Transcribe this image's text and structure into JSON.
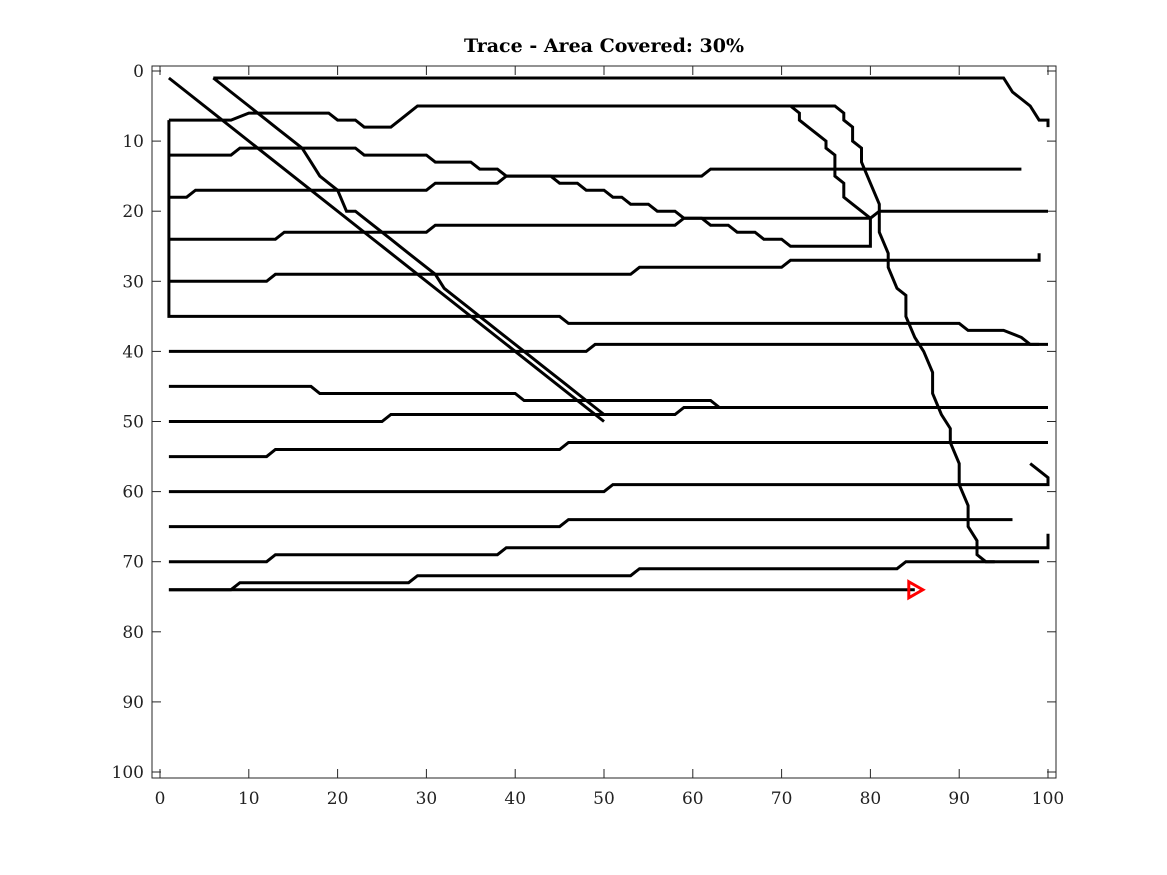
{
  "chart_data": {
    "type": "line",
    "title": "Trace - Area Covered: 30%",
    "xlabel": "",
    "ylabel": "",
    "xlim": [
      0,
      100
    ],
    "ylim": [
      0,
      100
    ],
    "y_reversed": true,
    "grid": false,
    "x_ticks": [
      0,
      10,
      20,
      30,
      40,
      50,
      60,
      70,
      80,
      90,
      100
    ],
    "x_tick_labels": [
      "0",
      "10",
      "20",
      "30",
      "40",
      "50",
      "60",
      "70",
      "80",
      "90",
      "100"
    ],
    "y_ticks": [
      0,
      10,
      20,
      30,
      40,
      50,
      60,
      70,
      80,
      90,
      100
    ],
    "y_tick_labels": [
      "0",
      "10",
      "20",
      "30",
      "40",
      "50",
      "60",
      "70",
      "80",
      "90",
      "100"
    ],
    "line_color": "#000000",
    "marker": {
      "shape": "triangle-right",
      "x": 85,
      "y": 74,
      "color": "#ff0000"
    },
    "series": [
      {
        "points": [
          [
            1,
            1
          ],
          [
            50,
            50
          ]
        ]
      },
      {
        "points": [
          [
            6,
            1
          ],
          [
            95,
            1
          ],
          [
            96,
            3
          ],
          [
            97,
            4
          ],
          [
            98,
            5
          ],
          [
            99,
            7
          ],
          [
            100,
            7
          ],
          [
            100,
            8
          ]
        ]
      },
      {
        "points": [
          [
            6,
            1
          ],
          [
            7,
            2
          ],
          [
            8,
            3
          ],
          [
            9,
            4
          ],
          [
            10,
            5
          ],
          [
            11,
            6
          ],
          [
            12,
            7
          ],
          [
            13,
            8
          ],
          [
            14,
            9
          ],
          [
            15,
            10
          ],
          [
            16,
            11
          ],
          [
            17,
            13
          ],
          [
            18,
            15
          ],
          [
            19,
            16
          ],
          [
            20,
            17
          ],
          [
            21,
            20
          ],
          [
            22,
            20
          ],
          [
            23,
            21
          ],
          [
            24,
            22
          ],
          [
            25,
            23
          ],
          [
            26,
            24
          ],
          [
            27,
            25
          ],
          [
            28,
            26
          ],
          [
            29,
            27
          ],
          [
            30,
            28
          ],
          [
            31,
            29
          ],
          [
            32,
            31
          ],
          [
            33,
            32
          ],
          [
            34,
            33
          ],
          [
            35,
            34
          ],
          [
            36,
            35
          ],
          [
            37,
            36
          ],
          [
            38,
            37
          ],
          [
            39,
            38
          ],
          [
            40,
            39
          ],
          [
            41,
            40
          ],
          [
            42,
            41
          ],
          [
            43,
            42
          ],
          [
            44,
            43
          ],
          [
            45,
            44
          ],
          [
            46,
            45
          ],
          [
            47,
            46
          ],
          [
            48,
            47
          ],
          [
            49,
            48
          ],
          [
            50,
            49
          ]
        ]
      },
      {
        "points": [
          [
            1,
            7
          ],
          [
            8,
            7
          ],
          [
            10,
            6
          ],
          [
            19,
            6
          ],
          [
            20,
            7
          ],
          [
            22,
            7
          ],
          [
            23,
            8
          ],
          [
            26,
            8
          ],
          [
            27,
            7
          ],
          [
            28,
            6
          ],
          [
            29,
            5
          ],
          [
            76,
            5
          ],
          [
            77,
            6
          ],
          [
            77,
            7
          ],
          [
            78,
            8
          ],
          [
            78,
            10
          ],
          [
            79,
            11
          ],
          [
            79,
            13
          ],
          [
            80,
            16
          ],
          [
            81,
            19
          ],
          [
            81,
            23
          ],
          [
            82,
            26
          ],
          [
            82,
            28
          ],
          [
            83,
            31
          ],
          [
            84,
            32
          ],
          [
            84,
            35
          ],
          [
            85,
            38
          ],
          [
            86,
            40
          ],
          [
            87,
            43
          ],
          [
            87,
            46
          ],
          [
            88,
            49
          ],
          [
            89,
            51
          ],
          [
            89,
            53
          ],
          [
            90,
            56
          ],
          [
            90,
            59
          ],
          [
            91,
            62
          ],
          [
            91,
            65
          ],
          [
            92,
            67
          ],
          [
            92,
            69
          ],
          [
            93,
            70
          ],
          [
            99,
            70
          ]
        ]
      },
      {
        "points": [
          [
            1,
            7
          ],
          [
            1,
            35
          ],
          [
            45,
            35
          ],
          [
            46,
            36
          ],
          [
            90,
            36
          ],
          [
            91,
            37
          ],
          [
            95,
            37
          ],
          [
            97,
            38
          ],
          [
            98,
            39
          ],
          [
            99,
            39
          ]
        ]
      },
      {
        "points": [
          [
            1,
            12
          ],
          [
            8,
            12
          ],
          [
            9,
            11
          ],
          [
            22,
            11
          ],
          [
            23,
            12
          ],
          [
            30,
            12
          ],
          [
            31,
            13
          ],
          [
            35,
            13
          ],
          [
            36,
            14
          ],
          [
            38,
            14
          ],
          [
            39,
            15
          ],
          [
            44,
            15
          ],
          [
            45,
            16
          ],
          [
            47,
            16
          ],
          [
            48,
            17
          ],
          [
            50,
            17
          ],
          [
            51,
            18
          ],
          [
            52,
            18
          ],
          [
            53,
            19
          ],
          [
            55,
            19
          ],
          [
            56,
            20
          ],
          [
            58,
            20
          ],
          [
            59,
            21
          ],
          [
            61,
            21
          ],
          [
            62,
            22
          ],
          [
            64,
            22
          ],
          [
            65,
            23
          ],
          [
            67,
            23
          ],
          [
            68,
            24
          ],
          [
            70,
            24
          ],
          [
            71,
            25
          ],
          [
            80,
            25
          ],
          [
            80,
            21
          ],
          [
            79,
            20
          ],
          [
            78,
            19
          ],
          [
            77,
            18
          ],
          [
            77,
            16
          ],
          [
            76,
            15
          ],
          [
            76,
            12
          ],
          [
            75,
            11
          ],
          [
            75,
            10
          ],
          [
            74,
            9
          ],
          [
            73,
            8
          ],
          [
            72,
            7
          ],
          [
            72,
            6
          ],
          [
            71,
            5
          ]
        ]
      },
      {
        "points": [
          [
            1,
            18
          ],
          [
            3,
            18
          ],
          [
            4,
            17
          ],
          [
            30,
            17
          ],
          [
            31,
            16
          ],
          [
            38,
            16
          ],
          [
            39,
            15
          ],
          [
            61,
            15
          ],
          [
            62,
            14
          ],
          [
            97,
            14
          ]
        ]
      },
      {
        "points": [
          [
            1,
            24
          ],
          [
            13,
            24
          ],
          [
            14,
            23
          ],
          [
            30,
            23
          ],
          [
            31,
            22
          ],
          [
            58,
            22
          ],
          [
            59,
            21
          ],
          [
            80,
            21
          ],
          [
            81,
            20
          ],
          [
            100,
            20
          ]
        ]
      },
      {
        "points": [
          [
            1,
            30
          ],
          [
            12,
            30
          ],
          [
            13,
            29
          ],
          [
            53,
            29
          ],
          [
            54,
            28
          ],
          [
            70,
            28
          ],
          [
            71,
            27
          ],
          [
            99,
            27
          ],
          [
            99,
            26
          ]
        ]
      },
      {
        "points": [
          [
            1,
            40
          ],
          [
            48,
            40
          ],
          [
            49,
            39
          ],
          [
            100,
            39
          ]
        ]
      },
      {
        "points": [
          [
            1,
            45
          ],
          [
            17,
            45
          ],
          [
            18,
            46
          ],
          [
            40,
            46
          ],
          [
            41,
            47
          ],
          [
            62,
            47
          ],
          [
            63,
            48
          ],
          [
            95,
            48
          ]
        ]
      },
      {
        "points": [
          [
            1,
            50
          ],
          [
            25,
            50
          ],
          [
            26,
            49
          ],
          [
            58,
            49
          ],
          [
            59,
            48
          ],
          [
            100,
            48
          ]
        ]
      },
      {
        "points": [
          [
            1,
            55
          ],
          [
            12,
            55
          ],
          [
            13,
            54
          ],
          [
            45,
            54
          ],
          [
            46,
            53
          ],
          [
            100,
            53
          ]
        ]
      },
      {
        "points": [
          [
            1,
            60
          ],
          [
            50,
            60
          ],
          [
            51,
            59
          ],
          [
            100,
            59
          ],
          [
            100,
            58
          ],
          [
            99,
            57
          ],
          [
            98,
            56
          ]
        ]
      },
      {
        "points": [
          [
            1,
            65
          ],
          [
            45,
            65
          ],
          [
            46,
            64
          ],
          [
            96,
            64
          ]
        ]
      },
      {
        "points": [
          [
            1,
            70
          ],
          [
            12,
            70
          ],
          [
            13,
            69
          ],
          [
            38,
            69
          ],
          [
            39,
            68
          ],
          [
            100,
            68
          ],
          [
            100,
            66
          ]
        ]
      },
      {
        "points": [
          [
            1,
            74
          ],
          [
            8,
            74
          ],
          [
            9,
            73
          ],
          [
            28,
            73
          ],
          [
            29,
            72
          ],
          [
            53,
            72
          ],
          [
            54,
            71
          ],
          [
            83,
            71
          ],
          [
            84,
            70
          ],
          [
            94,
            70
          ]
        ]
      },
      {
        "points": [
          [
            1,
            74
          ],
          [
            85,
            74
          ]
        ]
      }
    ]
  }
}
